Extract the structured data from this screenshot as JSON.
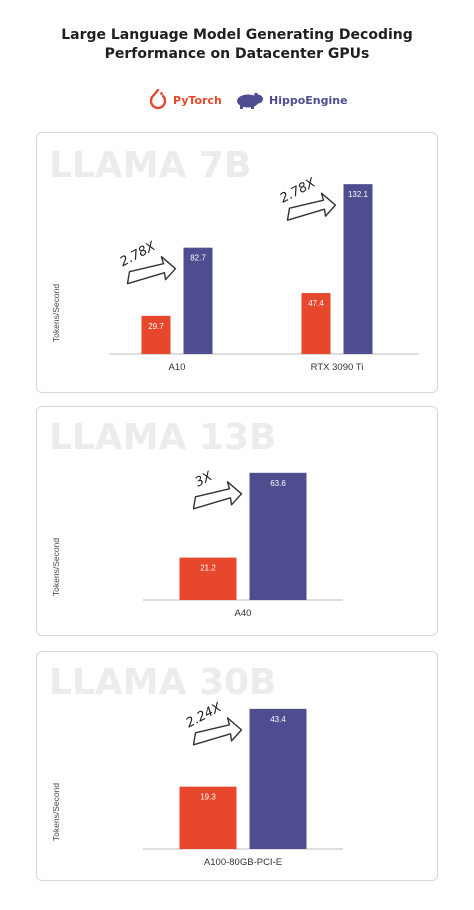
{
  "title": {
    "line1": "Large Language Model Generating Decoding",
    "line2": "Performance on Datacenter GPUs"
  },
  "legend": [
    {
      "label": "PyTorch",
      "icon": "pytorch-logo-icon",
      "color": "#e7472c"
    },
    {
      "label": "HippoEngine",
      "icon": "hippo-logo-icon",
      "color": "#4d4d8f"
    }
  ],
  "colors": {
    "pytorch": "#e7472c",
    "hippoengine": "#4d4d8f",
    "axis": "#bdbdbd",
    "watermark": "#ececec"
  },
  "chart_data": [
    {
      "type": "bar",
      "title": "LLAMA 7B",
      "ylabel": "Tokens/Second",
      "categories": [
        "A10",
        "RTX 3090 Ti"
      ],
      "series": [
        {
          "name": "PyTorch",
          "values": [
            29.7,
            47.4
          ]
        },
        {
          "name": "HippoEngine",
          "values": [
            82.7,
            132.1
          ]
        }
      ],
      "data_labels": [
        [
          "29.7",
          "47.4"
        ],
        [
          "82.7",
          "132.1"
        ]
      ],
      "annotations": [
        "2.78X",
        "2.78X"
      ],
      "ylim": [
        0,
        140
      ]
    },
    {
      "type": "bar",
      "title": "LLAMA 13B",
      "ylabel": "Tokens/Second",
      "categories": [
        "A40"
      ],
      "series": [
        {
          "name": "PyTorch",
          "values": [
            21.2
          ]
        },
        {
          "name": "HippoEngine",
          "values": [
            63.6
          ]
        }
      ],
      "data_labels": [
        [
          "21.2"
        ],
        [
          "63.6"
        ]
      ],
      "annotations": [
        "3X"
      ],
      "ylim": [
        0,
        70
      ]
    },
    {
      "type": "bar",
      "title": "LLAMA 30B",
      "ylabel": "Tokens/Second",
      "categories": [
        "A100-80GB-PCI-E"
      ],
      "series": [
        {
          "name": "PyTorch",
          "values": [
            19.3
          ]
        },
        {
          "name": "HippoEngine",
          "values": [
            43.4
          ]
        }
      ],
      "data_labels": [
        [
          "19.3"
        ],
        [
          "43.4"
        ]
      ],
      "annotations": [
        "2.24X"
      ],
      "ylim": [
        0,
        48
      ]
    }
  ]
}
